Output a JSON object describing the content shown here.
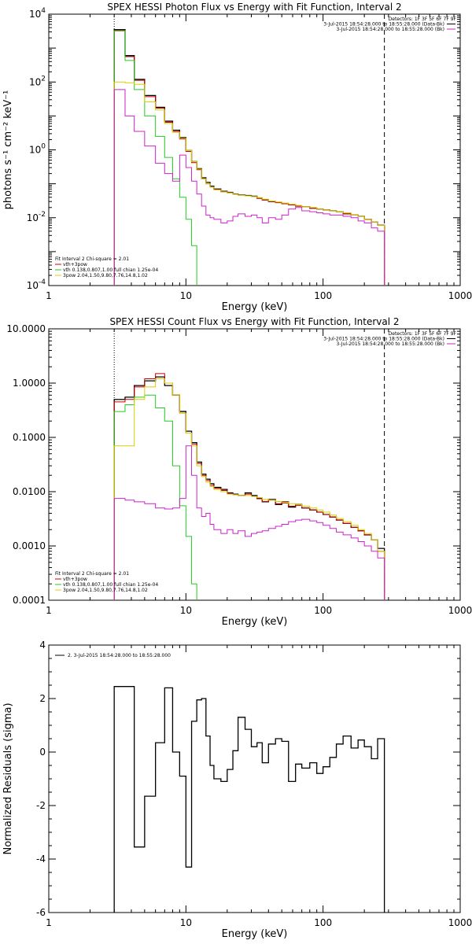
{
  "chart_data": [
    {
      "type": "line",
      "title": "SPEX HESSI Photon Flux vs Energy with Fit Function, Interval 2",
      "xlabel": "Energy (keV)",
      "ylabel": "photons s⁻¹ cm⁻² keV⁻¹",
      "xscale": "log",
      "yscale": "log",
      "xlim": [
        1,
        1000
      ],
      "ylim": [
        0.0001,
        10000
      ],
      "xticks": [
        {
          "value": 1,
          "label": "1"
        },
        {
          "value": 10,
          "label": "10"
        },
        {
          "value": 100,
          "label": "100"
        },
        {
          "value": 1000,
          "label": "1000"
        }
      ],
      "yticks": [
        {
          "value": 10000,
          "base": "10",
          "exp": "4"
        },
        {
          "value": 100,
          "base": "10",
          "exp": "2"
        },
        {
          "value": 1,
          "base": "10",
          "exp": "0"
        },
        {
          "value": 0.01,
          "base": "10",
          "exp": "-2"
        },
        {
          "value": 0.0001,
          "base": "10",
          "exp": "-4"
        }
      ],
      "vlines": [
        {
          "x": 3,
          "color": "#000000",
          "style": "dotted"
        },
        {
          "x": 280,
          "color": "#000000",
          "style": "dashed"
        }
      ],
      "legend_top": [
        {
          "text": "Detectors: 1F 3F 5F 6F 7F 9F",
          "color": ""
        },
        {
          "text": "3-Jul-2015 18:54:28.000 to 18:55:28.000 (Data-Bk)",
          "color": "#000000"
        },
        {
          "text": "3-Jul-2015 18:54:28.000 to 18:55:28.000 (Bk)",
          "color": "#cc22cc"
        }
      ],
      "legend_bottom": [
        {
          "text": "Fit Interval 2   Chi-square = 2.01",
          "color": ""
        },
        {
          "text": "vth+3pow",
          "color": "#cc0000"
        },
        {
          "text": "vth 0.138,0.807,1.00  full chian 1.25e-04",
          "color": "#22cc22"
        },
        {
          "text": "3pow 2.04,1.50,9.80,7.76,14.8,1.02",
          "color": "#ddcc00"
        }
      ],
      "edges": [
        3,
        3.6,
        4.2,
        5,
        6,
        7,
        8,
        9,
        10,
        11,
        12,
        13,
        14,
        15,
        16,
        18,
        20,
        22,
        24,
        27,
        30,
        33,
        36,
        40,
        45,
        50,
        56,
        63,
        70,
        80,
        90,
        100,
        112,
        125,
        140,
        160,
        180,
        200,
        225,
        250,
        280
      ],
      "series": [
        {
          "color": "#000000",
          "width": 1.3,
          "values": [
            3500,
            600,
            120,
            40,
            18,
            7,
            3.8,
            2.3,
            0.95,
            0.45,
            0.28,
            0.15,
            0.11,
            0.085,
            0.07,
            0.06,
            0.056,
            0.05,
            0.047,
            0.045,
            0.043,
            0.038,
            0.034,
            0.03,
            0.028,
            0.026,
            0.024,
            0.022,
            0.021,
            0.019,
            0.018,
            0.017,
            0.016,
            0.015,
            0.013,
            0.012,
            0.011,
            0.009,
            0.0075,
            0.006
          ]
        },
        {
          "color": "#cc0000",
          "width": 1,
          "values": [
            3300,
            560,
            112,
            37,
            17,
            6.5,
            3.5,
            2.1,
            0.9,
            0.42,
            0.26,
            0.14,
            0.1,
            0.08,
            0.068,
            0.058,
            0.054,
            0.049,
            0.046,
            0.044,
            0.042,
            0.037,
            0.033,
            0.03,
            0.028,
            0.026,
            0.024,
            0.022,
            0.021,
            0.019,
            0.018,
            0.017,
            0.016,
            0.015,
            0.013,
            0.012,
            0.011,
            0.009,
            0.0075,
            0.006
          ]
        },
        {
          "color": "#22cc22",
          "width": 1,
          "values": [
            3200,
            430,
            60,
            10,
            2.5,
            0.6,
            0.14,
            0.04,
            0.009,
            0.0015,
            5e-05
          ]
        },
        {
          "color": "#ddcc00",
          "width": 1,
          "values": [
            100,
            95,
            85,
            26,
            15,
            6,
            3.3,
            2.2,
            0.95,
            0.45,
            0.27,
            0.14,
            0.1,
            0.08,
            0.066,
            0.058,
            0.054,
            0.049,
            0.046,
            0.044,
            0.042,
            0.039,
            0.035,
            0.031,
            0.029,
            0.027,
            0.025,
            0.023,
            0.021,
            0.02,
            0.018,
            0.017,
            0.016,
            0.015,
            0.014,
            0.012,
            0.011,
            0.009,
            0.0075,
            0.006
          ]
        },
        {
          "color": "#cc22cc",
          "width": 1,
          "values": [
            60,
            10,
            3.5,
            1.3,
            0.4,
            0.2,
            0.12,
            0.7,
            0.3,
            0.12,
            0.05,
            0.022,
            0.012,
            0.01,
            0.009,
            0.007,
            0.008,
            0.011,
            0.013,
            0.011,
            0.012,
            0.01,
            0.007,
            0.01,
            0.009,
            0.012,
            0.018,
            0.02,
            0.016,
            0.015,
            0.014,
            0.013,
            0.012,
            0.012,
            0.011,
            0.01,
            0.008,
            0.007,
            0.005,
            0.004
          ]
        }
      ]
    },
    {
      "type": "line",
      "title": "SPEX HESSI Count Flux vs Energy with Fit Function, Interval 2",
      "xlabel": "Energy (keV)",
      "ylabel": "",
      "xscale": "log",
      "yscale": "log",
      "xlim": [
        1,
        1000
      ],
      "ylim": [
        0.0001,
        10
      ],
      "xticks": [
        {
          "value": 1,
          "label": "1"
        },
        {
          "value": 10,
          "label": "10"
        },
        {
          "value": 100,
          "label": "100"
        },
        {
          "value": 1000,
          "label": "1000"
        }
      ],
      "yticks": [
        {
          "value": 10,
          "label": "10.0000"
        },
        {
          "value": 1,
          "label": "1.0000"
        },
        {
          "value": 0.1,
          "label": "0.1000"
        },
        {
          "value": 0.01,
          "label": "0.0100"
        },
        {
          "value": 0.001,
          "label": "0.0010"
        },
        {
          "value": 0.0001,
          "label": "0.0001"
        }
      ],
      "vlines": [
        {
          "x": 3,
          "color": "#000000",
          "style": "dotted"
        },
        {
          "x": 280,
          "color": "#000000",
          "style": "dashed"
        }
      ],
      "legend_top": [
        {
          "text": "Detectors: 1F 3F 5F 6F 7F 9F",
          "color": ""
        },
        {
          "text": "3-Jul-2015 18:54:28.000 to 18:55:28.000 (Data-Bk)",
          "color": "#000000"
        },
        {
          "text": "3-Jul-2015 18:54:28.000 to 18:55:28.000 (Bk)",
          "color": "#cc22cc"
        }
      ],
      "legend_bottom": [
        {
          "text": "Fit Interval 2   Chi-square = 2.01",
          "color": ""
        },
        {
          "text": "vth+3pow",
          "color": "#cc0000"
        },
        {
          "text": "vth 0.138,0.807,1.00  full chian 1.25e-04",
          "color": "#22cc22"
        },
        {
          "text": "3pow 2.04,1.50,9.80,7.76,14.8,1.02",
          "color": "#ddcc00"
        }
      ],
      "edges": [
        3,
        3.6,
        4.2,
        5,
        6,
        7,
        8,
        9,
        10,
        11,
        12,
        13,
        14,
        15,
        16,
        18,
        20,
        22,
        24,
        27,
        30,
        33,
        36,
        40,
        45,
        50,
        56,
        63,
        70,
        80,
        90,
        100,
        112,
        125,
        140,
        160,
        180,
        200,
        225,
        250,
        280
      ],
      "series": [
        {
          "color": "#000000",
          "width": 1.3,
          "values": [
            0.5,
            0.55,
            0.9,
            1.1,
            1.3,
            0.9,
            0.6,
            0.3,
            0.13,
            0.08,
            0.035,
            0.021,
            0.017,
            0.014,
            0.012,
            0.011,
            0.0095,
            0.009,
            0.0085,
            0.0095,
            0.0085,
            0.0075,
            0.0065,
            0.0072,
            0.0058,
            0.0065,
            0.0052,
            0.0058,
            0.005,
            0.0046,
            0.0042,
            0.0038,
            0.0034,
            0.003,
            0.0026,
            0.0022,
            0.0019,
            0.0016,
            0.0013,
            0.0009
          ]
        },
        {
          "color": "#cc0000",
          "width": 1,
          "values": [
            0.45,
            0.5,
            0.85,
            1.2,
            1.5,
            1.0,
            0.6,
            0.28,
            0.12,
            0.075,
            0.033,
            0.02,
            0.016,
            0.013,
            0.0115,
            0.0105,
            0.0092,
            0.0088,
            0.0085,
            0.009,
            0.0082,
            0.0074,
            0.0066,
            0.007,
            0.006,
            0.0062,
            0.0054,
            0.0056,
            0.005,
            0.0046,
            0.0042,
            0.0038,
            0.0034,
            0.003,
            0.0026,
            0.0022,
            0.0019,
            0.0016,
            0.0013,
            0.0008
          ]
        },
        {
          "color": "#22cc22",
          "width": 1,
          "values": [
            0.3,
            0.4,
            0.55,
            0.6,
            0.35,
            0.2,
            0.03,
            0.0055,
            0.0015,
            0.0002,
            5e-05
          ]
        },
        {
          "color": "#ddcc00",
          "width": 1,
          "values": [
            0.07,
            0.07,
            0.5,
            0.85,
            1.2,
            1.0,
            0.6,
            0.28,
            0.12,
            0.07,
            0.03,
            0.019,
            0.015,
            0.0125,
            0.011,
            0.01,
            0.009,
            0.0088,
            0.0085,
            0.0085,
            0.0082,
            0.0078,
            0.0072,
            0.007,
            0.0066,
            0.0064,
            0.006,
            0.0058,
            0.0054,
            0.005,
            0.0046,
            0.0042,
            0.0037,
            0.0032,
            0.0028,
            0.0024,
            0.002,
            0.0017,
            0.0013,
            0.0008
          ]
        },
        {
          "color": "#cc22cc",
          "width": 1,
          "values": [
            0.0075,
            0.007,
            0.0065,
            0.006,
            0.005,
            0.0048,
            0.005,
            0.0075,
            0.07,
            0.02,
            0.005,
            0.0035,
            0.004,
            0.0025,
            0.002,
            0.0017,
            0.002,
            0.0017,
            0.0019,
            0.0015,
            0.0017,
            0.0018,
            0.0019,
            0.0021,
            0.0023,
            0.0025,
            0.0028,
            0.003,
            0.0031,
            0.0029,
            0.0027,
            0.0024,
            0.0021,
            0.0018,
            0.0016,
            0.0014,
            0.0012,
            0.001,
            0.0008,
            0.0006
          ]
        }
      ]
    },
    {
      "type": "line",
      "title": "",
      "xlabel": "Energy (keV)",
      "ylabel": "Normalized Residuals (sigma)",
      "xscale": "log",
      "yscale": "linear",
      "xlim": [
        1,
        1000
      ],
      "ylim": [
        -6,
        4
      ],
      "xticks": [
        {
          "value": 1,
          "label": "1"
        },
        {
          "value": 10,
          "label": "10"
        },
        {
          "value": 100,
          "label": "100"
        },
        {
          "value": 1000,
          "label": "1000"
        }
      ],
      "yticks": [
        {
          "value": 4,
          "label": "4"
        },
        {
          "value": 2,
          "label": "2"
        },
        {
          "value": 0,
          "label": "0"
        },
        {
          "value": -2,
          "label": "-2"
        },
        {
          "value": -4,
          "label": "-4"
        },
        {
          "value": -6,
          "label": "-6"
        }
      ],
      "vlines": [],
      "legend_top": [
        {
          "text": "2. 3-Jul-2015 18:54:28.000 to 18:55:28.000",
          "color": "#000000"
        }
      ],
      "legend_bottom": [],
      "edges": [
        3,
        4.2,
        5,
        6,
        7,
        8,
        9,
        10,
        11,
        12,
        13,
        14,
        15,
        16,
        18,
        20,
        22,
        24,
        27,
        30,
        33,
        36,
        40,
        45,
        50,
        56,
        63,
        70,
        80,
        90,
        100,
        112,
        125,
        140,
        160,
        180,
        200,
        225,
        250,
        280
      ],
      "series": [
        {
          "color": "#000000",
          "width": 1.3,
          "values": [
            2.45,
            -3.55,
            -1.65,
            0.35,
            2.4,
            0.0,
            -0.9,
            -4.3,
            1.15,
            1.95,
            2.0,
            0.6,
            -0.5,
            -1.0,
            -1.1,
            -0.65,
            0.05,
            1.3,
            0.85,
            0.2,
            0.35,
            -0.4,
            0.3,
            0.5,
            0.4,
            -1.1,
            -0.45,
            -0.6,
            -0.4,
            -0.8,
            -0.55,
            -0.2,
            0.3,
            0.6,
            0.15,
            0.45,
            0.2,
            -0.25,
            0.5
          ]
        }
      ]
    }
  ]
}
